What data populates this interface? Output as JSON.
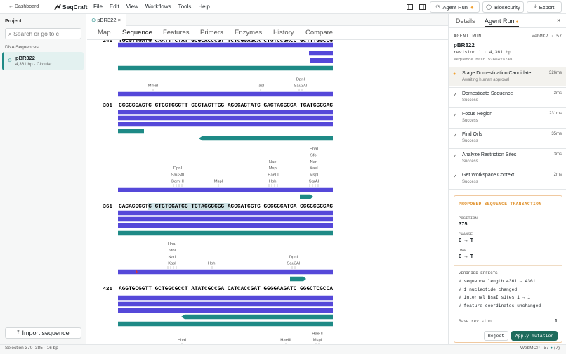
{
  "topbar": {
    "back": "Dashboard",
    "brand": "SeqCraft",
    "menu": [
      "File",
      "Edit",
      "View",
      "Workflows",
      "Tools",
      "Help"
    ],
    "agent_run": "Agent Run",
    "biosecurity": "Biosecurity",
    "export": "Export"
  },
  "sidebar": {
    "project": "Project",
    "search_placeholder": "Search or go to c",
    "section": "DNA Sequences",
    "items": [
      {
        "name": "pBR322",
        "meta": "4,361 bp · Circular"
      }
    ],
    "import": "Import sequence"
  },
  "editor": {
    "tab": "pBR322",
    "subtabs": [
      "Map",
      "Sequence",
      "Features",
      "Primers",
      "Enzymes",
      "History",
      "Compare"
    ],
    "active_subtab": 1,
    "rows": [
      {
        "pos": "241",
        "seq": "TGCGTTGATG CAATTTCTAT GCGCACCCGT TCTCGGAGCA CTGTCCGACC GCTTTGGCCG"
      },
      {
        "pos": "301",
        "seq": "CCGCCCAGTC CTGCTCGCTT CGCTACTTGG AGCCACTATC GACTACGCGA TCATGGCGAC"
      },
      {
        "pos": "361",
        "seq": "CACACCCGTC CTGTGGATCC TCTACGCCGG ACGCATCGTG GCCGGCATCA CCGGCGCCAC"
      },
      {
        "pos": "421",
        "seq": "AGGTGCGGTT GCTGGCGCCT ATATCGCCGA CATCACCGAT GGGGAAGATC GGGCTCGCCA"
      }
    ],
    "enzymes": [
      [
        "MmeI"
      ],
      [
        "TaqI"
      ],
      [
        "DpnI",
        "Sau3AI"
      ],
      [
        "DpnI",
        "Sau3AI",
        "BamHI"
      ],
      [
        "MspI"
      ],
      [
        "NaeI",
        "MspI",
        "HaeIII",
        "HphI"
      ],
      [
        "HhaI",
        "SfoI",
        "NarI",
        "KasI",
        "MspI",
        "SgrAI"
      ],
      [
        "HhaI",
        "SfoI",
        "NarI",
        "KasI"
      ],
      [
        "HphI"
      ],
      [
        "DpnI",
        "Sau3AI"
      ],
      [
        "HhaI"
      ],
      [
        "HaeIII"
      ],
      [
        "HaeIII",
        "MspI"
      ]
    ]
  },
  "panel": {
    "tabs": [
      "Details",
      "Agent Run"
    ],
    "heading": "AGENT RUN",
    "source": "WebMCP · 57",
    "name": "pBR322",
    "revision": "revision 1 · 4,361 bp",
    "hash": "sequence hash 536042a748…",
    "steps": [
      {
        "name": "Stage Domestication Candidate",
        "status": "Awaiting human approval",
        "time": "326ms"
      },
      {
        "name": "Domesticate Sequence",
        "status": "Success",
        "time": "3ms"
      },
      {
        "name": "Focus Region",
        "status": "Success",
        "time": "231ms"
      },
      {
        "name": "Find Orfs",
        "status": "Success",
        "time": "35ms"
      },
      {
        "name": "Analyze Restriction Sites",
        "status": "Success",
        "time": "3ms"
      },
      {
        "name": "Get Workspace Context",
        "status": "Success",
        "time": "2ms"
      }
    ],
    "card": {
      "title": "PROPOSED SEQUENCE TRANSACTION",
      "fields": [
        {
          "label": "POSITION",
          "value": "375"
        },
        {
          "label": "CHANGE",
          "value": "G → T"
        },
        {
          "label": "DNA",
          "value": "G → T"
        }
      ],
      "effects_title": "VERIFIED EFFECTS",
      "effects": [
        "√ sequence length 4361 → 4361",
        "√ 1 nucleotide changed",
        "√ internal BsaI sites 1 → 1",
        "√ feature coordinates unchanged"
      ],
      "base_label": "Base revision",
      "base_value": "1",
      "reject": "Reject",
      "apply": "Apply mutation"
    }
  },
  "status": {
    "selection": "Selection 370–385 · 16 bp",
    "source": "WebMCP · 57",
    "count": "(7)"
  }
}
